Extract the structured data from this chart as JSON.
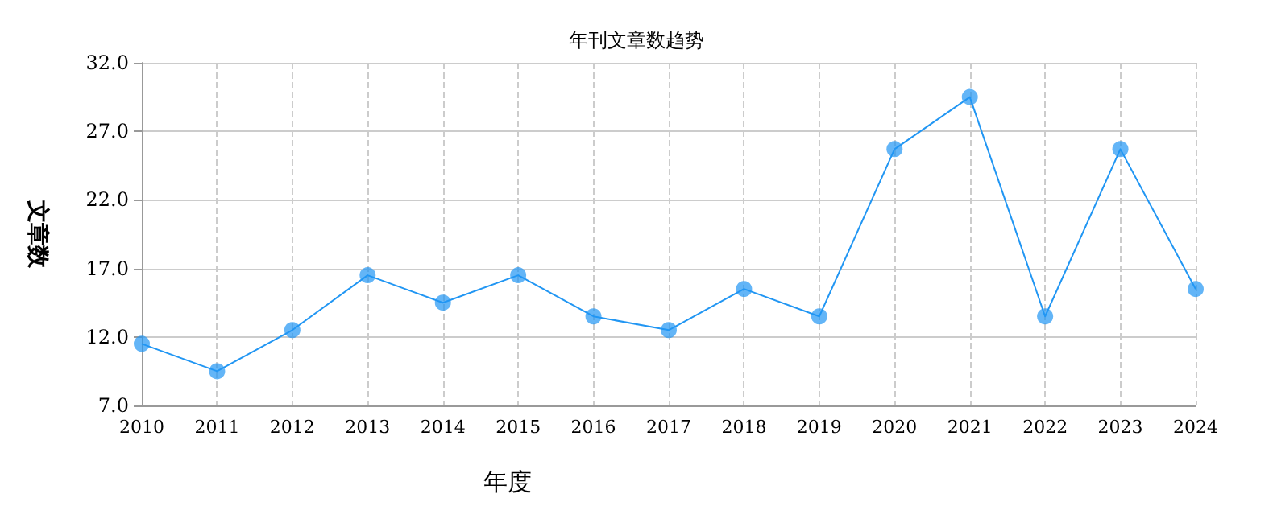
{
  "chart_data": {
    "type": "line",
    "title": "年刊文章数趋势",
    "xlabel": "年度",
    "ylabel": "文章数",
    "categories": [
      "2010",
      "2011",
      "2012",
      "2013",
      "2014",
      "2015",
      "2016",
      "2017",
      "2018",
      "2019",
      "2020",
      "2021",
      "2022",
      "2023",
      "2024"
    ],
    "series": [
      {
        "color": "#2196f3",
        "values": [
          11.5,
          9.5,
          12.5,
          16.5,
          14.5,
          16.5,
          13.5,
          12.5,
          15.5,
          13.5,
          25.7,
          29.5,
          13.5,
          25.7,
          15.5
        ]
      }
    ],
    "ylim": [
      7,
      32
    ],
    "yticks": [
      {
        "value": 7,
        "label": "7.0"
      },
      {
        "value": 12,
        "label": "12.0"
      },
      {
        "value": 17,
        "label": "17.0"
      },
      {
        "value": 22,
        "label": "22.0"
      },
      {
        "value": 27,
        "label": "27.0"
      },
      {
        "value": 32,
        "label": "32.0"
      }
    ],
    "grid": true,
    "marker": "circle",
    "line_style": "solid"
  }
}
